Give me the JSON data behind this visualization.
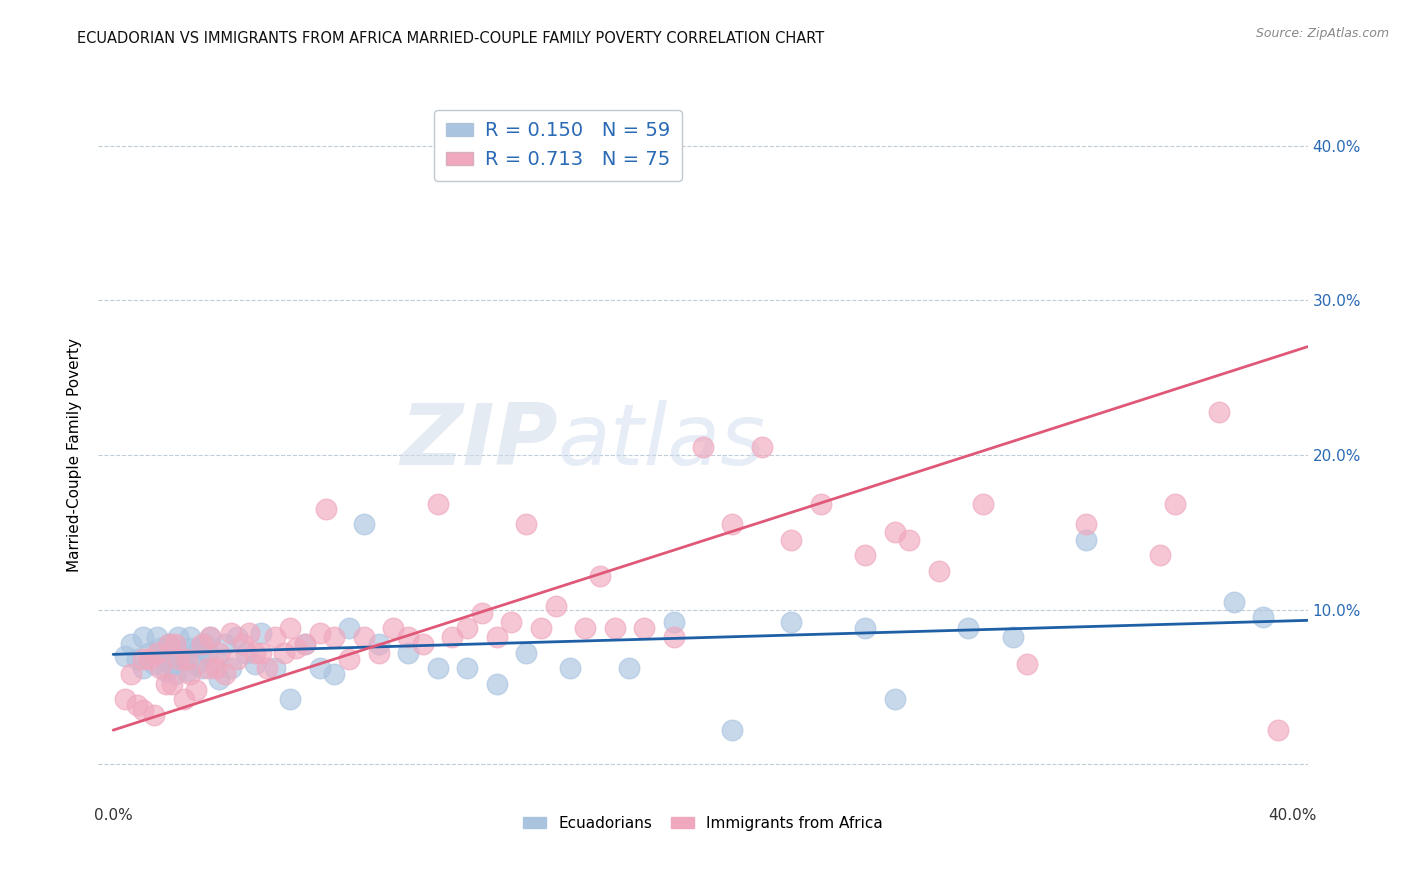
{
  "title": "ECUADORIAN VS IMMIGRANTS FROM AFRICA MARRIED-COUPLE FAMILY POVERTY CORRELATION CHART",
  "source": "Source: ZipAtlas.com",
  "ylabel": "Married-Couple Family Poverty",
  "xlim": [
    -0.005,
    0.405
  ],
  "ylim": [
    -0.025,
    0.425
  ],
  "blue_color": "#aac4e0",
  "pink_color": "#f0a8be",
  "blue_line_color": "#1f5fa6",
  "pink_line_color": "#e05878",
  "R_blue": 0.15,
  "N_blue": 59,
  "R_pink": 0.713,
  "N_pink": 75,
  "legend_blue_label": "Ecuadorians",
  "legend_pink_label": "Immigrants from Africa",
  "watermark_zip": "ZIP",
  "watermark_atlas": "atlas",
  "blue_x": [
    0.004,
    0.006,
    0.008,
    0.01,
    0.01,
    0.012,
    0.014,
    0.015,
    0.016,
    0.017,
    0.018,
    0.019,
    0.02,
    0.021,
    0.022,
    0.022,
    0.024,
    0.025,
    0.026,
    0.026,
    0.028,
    0.029,
    0.03,
    0.031,
    0.032,
    0.033,
    0.035,
    0.036,
    0.038,
    0.04,
    0.042,
    0.045,
    0.048,
    0.05,
    0.055,
    0.06,
    0.065,
    0.07,
    0.075,
    0.08,
    0.085,
    0.09,
    0.1,
    0.11,
    0.12,
    0.13,
    0.14,
    0.155,
    0.175,
    0.19,
    0.21,
    0.23,
    0.255,
    0.265,
    0.29,
    0.305,
    0.33,
    0.38,
    0.39
  ],
  "blue_y": [
    0.07,
    0.078,
    0.068,
    0.062,
    0.082,
    0.072,
    0.065,
    0.082,
    0.075,
    0.068,
    0.06,
    0.078,
    0.065,
    0.058,
    0.072,
    0.082,
    0.068,
    0.06,
    0.075,
    0.082,
    0.065,
    0.075,
    0.062,
    0.078,
    0.072,
    0.082,
    0.068,
    0.055,
    0.078,
    0.062,
    0.082,
    0.072,
    0.065,
    0.085,
    0.062,
    0.042,
    0.078,
    0.062,
    0.058,
    0.088,
    0.155,
    0.078,
    0.072,
    0.062,
    0.062,
    0.052,
    0.072,
    0.062,
    0.062,
    0.092,
    0.022,
    0.092,
    0.088,
    0.042,
    0.088,
    0.082,
    0.145,
    0.105,
    0.095
  ],
  "pink_x": [
    0.004,
    0.006,
    0.008,
    0.01,
    0.01,
    0.012,
    0.014,
    0.015,
    0.016,
    0.018,
    0.019,
    0.02,
    0.021,
    0.022,
    0.024,
    0.025,
    0.026,
    0.028,
    0.03,
    0.032,
    0.033,
    0.035,
    0.036,
    0.038,
    0.04,
    0.042,
    0.044,
    0.046,
    0.048,
    0.05,
    0.052,
    0.055,
    0.058,
    0.06,
    0.062,
    0.065,
    0.07,
    0.072,
    0.075,
    0.08,
    0.085,
    0.09,
    0.095,
    0.1,
    0.105,
    0.11,
    0.115,
    0.12,
    0.125,
    0.13,
    0.135,
    0.14,
    0.145,
    0.15,
    0.16,
    0.165,
    0.17,
    0.18,
    0.19,
    0.2,
    0.21,
    0.22,
    0.23,
    0.24,
    0.255,
    0.265,
    0.27,
    0.28,
    0.295,
    0.31,
    0.33,
    0.355,
    0.36,
    0.375,
    0.395
  ],
  "pink_y": [
    0.042,
    0.058,
    0.038,
    0.068,
    0.035,
    0.068,
    0.032,
    0.072,
    0.062,
    0.052,
    0.078,
    0.052,
    0.078,
    0.068,
    0.042,
    0.068,
    0.058,
    0.048,
    0.078,
    0.062,
    0.082,
    0.062,
    0.072,
    0.058,
    0.085,
    0.068,
    0.078,
    0.085,
    0.072,
    0.072,
    0.062,
    0.082,
    0.072,
    0.088,
    0.075,
    0.078,
    0.085,
    0.165,
    0.082,
    0.068,
    0.082,
    0.072,
    0.088,
    0.082,
    0.078,
    0.168,
    0.082,
    0.088,
    0.098,
    0.082,
    0.092,
    0.155,
    0.088,
    0.102,
    0.088,
    0.122,
    0.088,
    0.088,
    0.082,
    0.205,
    0.155,
    0.205,
    0.145,
    0.168,
    0.135,
    0.15,
    0.145,
    0.125,
    0.168,
    0.065,
    0.155,
    0.135,
    0.168,
    0.228,
    0.022
  ],
  "blue_trend_x": [
    0.0,
    0.405
  ],
  "blue_trend_y": [
    0.071,
    0.093
  ],
  "pink_trend_x": [
    0.0,
    0.405
  ],
  "pink_trend_y": [
    0.022,
    0.27
  ]
}
